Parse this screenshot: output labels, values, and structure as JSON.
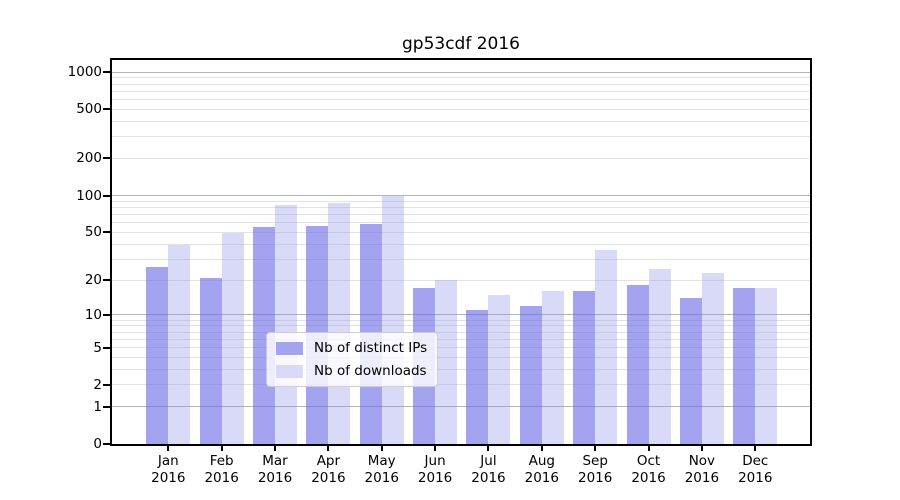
{
  "chart_data": {
    "type": "bar",
    "title": "gp53cdf 2016",
    "categories": [
      "Jan",
      "Feb",
      "Mar",
      "Apr",
      "May",
      "Jun",
      "Jul",
      "Aug",
      "Sep",
      "Oct",
      "Nov",
      "Dec"
    ],
    "x_year": "2016",
    "series": [
      {
        "name": "Nb of distinct IPs",
        "swatch_hex": "#a3a3ef",
        "fill_rgba": "rgba(107,107,229,0.62)",
        "values": [
          26,
          21,
          55,
          56,
          59,
          17,
          11,
          12,
          16,
          18,
          14,
          17
        ]
      },
      {
        "name": "Nb of downloads",
        "swatch_hex": "#d9d9f8",
        "fill_rgba": "rgba(146,146,235,0.35)",
        "values": [
          39,
          49,
          84,
          87,
          100,
          20,
          15,
          16,
          36,
          25,
          23,
          17
        ]
      }
    ],
    "y_axis": {
      "scale": "log1p",
      "ticks": [
        0,
        1,
        2,
        5,
        10,
        20,
        50,
        100,
        200,
        500,
        1000
      ],
      "max": 1250,
      "major_gridlines": [
        1,
        10,
        100,
        1000
      ],
      "minor_gridlines": [
        2,
        3,
        4,
        5,
        6,
        7,
        8,
        9,
        20,
        30,
        40,
        50,
        60,
        70,
        80,
        90,
        200,
        300,
        400,
        500,
        600,
        700,
        800,
        900
      ]
    },
    "legend": {
      "position": "lower-center"
    },
    "grid": true,
    "colors": {
      "axis": "#000000",
      "grid_major": "#b4b4b4",
      "grid_minor": "#e2e2e2",
      "background": "#ffffff"
    }
  }
}
